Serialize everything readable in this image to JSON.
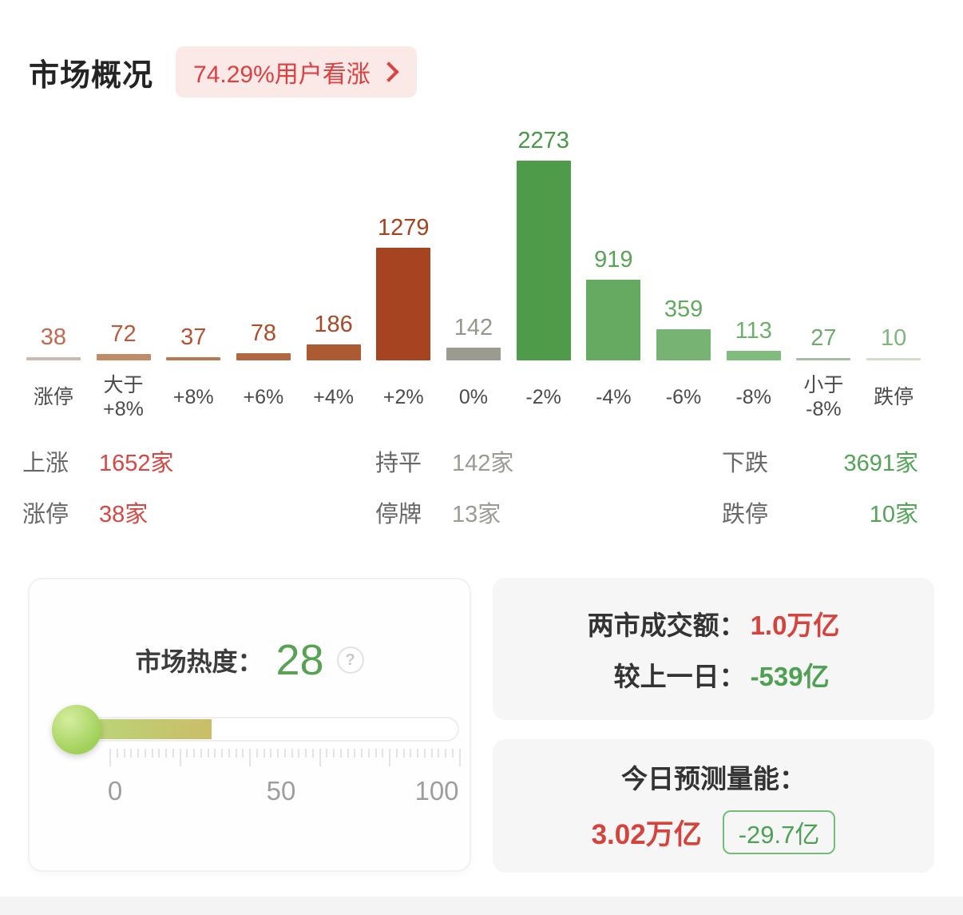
{
  "header": {
    "title": "市场概况",
    "badge_text": "74.29%用户看涨"
  },
  "chart_data": {
    "type": "bar",
    "categories": [
      "涨停",
      "大于+8%",
      "+8%",
      "+6%",
      "+4%",
      "+2%",
      "0%",
      "-2%",
      "-4%",
      "-6%",
      "-8%",
      "小于-8%",
      "跌停"
    ],
    "values": [
      38,
      72,
      37,
      78,
      186,
      1279,
      142,
      2273,
      919,
      359,
      113,
      27,
      10
    ],
    "ylim": [
      0,
      2273
    ],
    "grid": false,
    "legend": false,
    "bars": [
      {
        "display": "涨停",
        "bar_color": "#cbb9ab",
        "label_color": "#c06a4e"
      },
      {
        "display": "大于\n+8%",
        "bar_color": "#c08b66",
        "label_color": "#b95b3b"
      },
      {
        "display": "+8%",
        "bar_color": "#b97852",
        "label_color": "#b45334"
      },
      {
        "display": "+6%",
        "bar_color": "#b16841",
        "label_color": "#ae4d2c"
      },
      {
        "display": "+4%",
        "bar_color": "#ab5a32",
        "label_color": "#a94826"
      },
      {
        "display": "+2%",
        "bar_color": "#a64320",
        "label_color": "#a4431f"
      },
      {
        "display": "0%",
        "bar_color": "#9c9b90",
        "label_color": "#97968c"
      },
      {
        "display": "-2%",
        "bar_color": "#4e9c4a",
        "label_color": "#4a9747"
      },
      {
        "display": "-4%",
        "bar_color": "#66aa62",
        "label_color": "#58a355"
      },
      {
        "display": "-6%",
        "bar_color": "#77b373",
        "label_color": "#63aa60"
      },
      {
        "display": "-8%",
        "bar_color": "#80bc7e",
        "label_color": "#6db06b"
      },
      {
        "display": "小于\n-8%",
        "bar_color": "#a6bca4",
        "label_color": "#72a971"
      },
      {
        "display": "跌停",
        "bar_color": "#cfdfcc",
        "label_color": "#7fb67d"
      }
    ]
  },
  "summary": {
    "groups": [
      {
        "rows": [
          {
            "label": "上涨",
            "value": "1652家",
            "color": "#d84743"
          },
          {
            "label": "涨停",
            "value": "38家",
            "color": "#d84743"
          }
        ]
      },
      {
        "rows": [
          {
            "label": "持平",
            "value": "142家",
            "color": "#9b9b94"
          },
          {
            "label": "停牌",
            "value": "13家",
            "color": "#9b9b94"
          }
        ]
      },
      {
        "rows": [
          {
            "label": "下跌",
            "value": "3691家",
            "color": "#53a456"
          },
          {
            "label": "跌停",
            "value": "10家",
            "color": "#53a456"
          }
        ]
      }
    ]
  },
  "heat": {
    "label": "市场热度：",
    "value": "28",
    "value_color": "#58a254",
    "help_glyph": "?",
    "scale": {
      "min": "0",
      "mid": "50",
      "max": "100"
    }
  },
  "turnover": {
    "rows": [
      {
        "label": "两市成交额：",
        "value": "1.0万亿",
        "color": "#d5433c"
      },
      {
        "label": "较上一日：",
        "value": "-539亿",
        "color": "#4ea152"
      }
    ]
  },
  "forecast": {
    "title": "今日预测量能：",
    "value": "3.02万亿",
    "value_color": "#d5433c",
    "badge": "-29.7亿",
    "badge_color": "#4ea152"
  }
}
